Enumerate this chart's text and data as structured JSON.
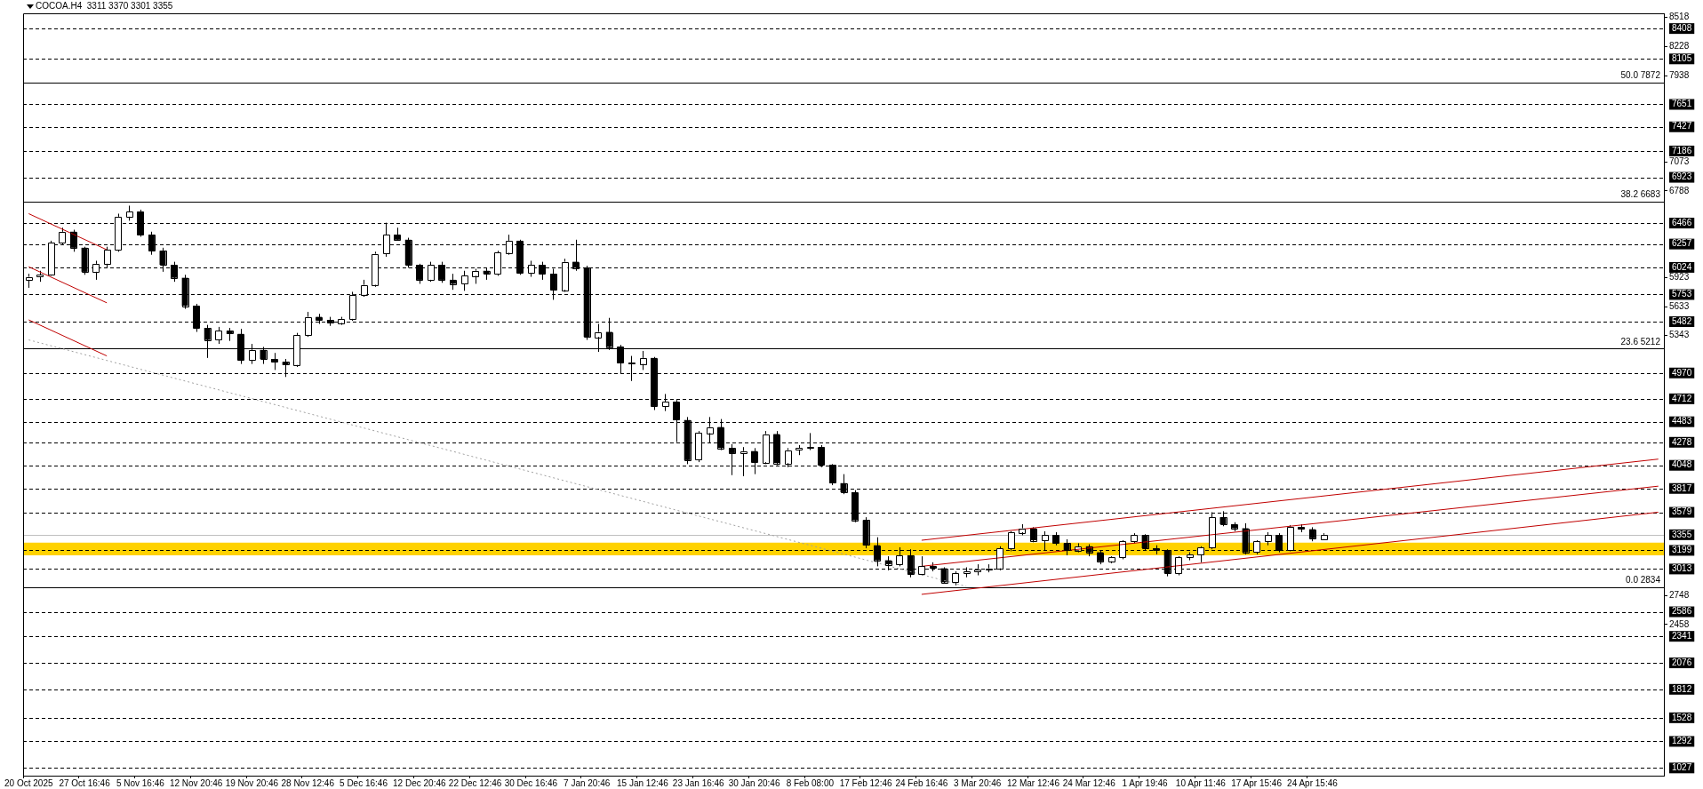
{
  "chart_data": {
    "type": "candlestick",
    "title": "COCOA.H4  3311 3370 3301 3355",
    "colors": [
      "#ffffff",
      "#ffffff",
      "#ffffff",
      "#ffffff",
      "#000000",
      "#000000",
      "#ffffff",
      "#ffffff",
      "#ffffff",
      "#ffffff",
      "#000000",
      "#000000",
      "#000000",
      "#000000",
      "#000000",
      "#000000",
      "#000000",
      "#ffffff",
      "#000000",
      "#000000",
      "#ffffff",
      "#000000",
      "#000000",
      "#000000",
      "#ffffff",
      "#ffffff",
      "#000000",
      "#000000",
      "#ffffff",
      "#ffffff",
      "#ffffff",
      "#ffffff",
      "#ffffff",
      "#000000",
      "#000000",
      "#000000",
      "#ffffff",
      "#000000",
      "#000000",
      "#ffffff",
      "#ffffff",
      "#000000",
      "#ffffff",
      "#ffffff",
      "#000000",
      "#ffffff",
      "#000000",
      "#000000",
      "#ffffff",
      "#000000",
      "#000000",
      "#ffffff",
      "#000000",
      "#000000",
      "#000000",
      "#ffffff",
      "#000000",
      "#ffffff",
      "#000000",
      "#000000",
      "#ffffff",
      "#ffffff",
      "#000000",
      "#000000",
      "#ffffff",
      "#000000",
      "#ffffff",
      "#000000",
      "#ffffff",
      "#ffffff",
      "#ffffff",
      "#000000",
      "#000000",
      "#000000",
      "#000000",
      "#000000",
      "#000000",
      "#000000",
      "#ffffff",
      "#000000",
      "#ffffff",
      "#000000",
      "#000000",
      "#ffffff",
      "#ffffff",
      "#ffffff",
      "#ffffff",
      "#ffffff",
      "#ffffff",
      "#ffffff",
      "#000000",
      "#ffffff",
      "#000000",
      "#000000",
      "#ffffff",
      "#000000",
      "#000000",
      "#ffffff",
      "#ffffff",
      "#ffffff",
      "#000000",
      "#000000",
      "#000000",
      "#ffffff",
      "#ffffff",
      "#ffffff",
      "#ffffff",
      "#000000",
      "#000000",
      "#000000",
      "#ffffff",
      "#ffffff",
      "#000000",
      "#ffffff",
      "#000000",
      "#000000",
      "#ffffff",
      null,
      null,
      null,
      null,
      null,
      null,
      null,
      null,
      null,
      null,
      null,
      null,
      null,
      null,
      null,
      null,
      null,
      null,
      null,
      null,
      null,
      null,
      null,
      null,
      null,
      null,
      null,
      null,
      null,
      null
    ],
    "categories": [
      "20 Oct 2025",
      null,
      null,
      null,
      null,
      "27 Oct 16:46",
      null,
      null,
      null,
      null,
      "5 Nov 16:46",
      null,
      null,
      null,
      null,
      "12 Nov 20:46",
      null,
      null,
      null,
      null,
      "19 Nov 20:46",
      null,
      null,
      null,
      null,
      "28 Nov 12:46",
      null,
      null,
      null,
      null,
      "5 Dec 16:46",
      null,
      null,
      null,
      null,
      "12 Dec 20:46",
      null,
      null,
      null,
      null,
      "22 Dec 12:46",
      null,
      null,
      null,
      null,
      "30 Dec 16:46",
      null,
      null,
      null,
      null,
      "7 Jan 20:46",
      null,
      null,
      null,
      null,
      "15 Jan 12:46",
      null,
      null,
      null,
      null,
      "23 Jan 16:46",
      null,
      null,
      null,
      null,
      "30 Jan 20:46",
      null,
      null,
      null,
      null,
      "8 Feb 08:00",
      null,
      null,
      null,
      null,
      "17 Feb 12:46",
      null,
      null,
      null,
      null,
      "24 Feb 16:46",
      null,
      null,
      null,
      null,
      "3 Mar 20:46",
      null,
      null,
      null,
      null,
      "12 Mar 12:46",
      null,
      null,
      null,
      null,
      "24 Mar 12:46",
      null,
      null,
      null,
      null,
      "1 Apr 19:46",
      null,
      null,
      null,
      null,
      "10 Apr 11:46",
      null,
      null,
      null,
      null,
      "17 Apr 15:46",
      null,
      null,
      null,
      null,
      "24 Apr 15:46",
      null,
      null,
      null,
      null,
      null,
      null,
      null,
      null,
      null,
      null,
      null,
      null,
      null,
      null,
      null,
      null,
      null,
      null,
      null,
      null,
      null,
      null,
      null,
      null,
      null,
      null,
      null,
      null,
      null,
      null,
      null
    ],
    "ohlc": [
      [
        5900,
        5960,
        5820,
        5930
      ],
      [
        5930,
        5990,
        5880,
        5950
      ],
      [
        5950,
        6290,
        5940,
        6270
      ],
      [
        6270,
        6420,
        6250,
        6380
      ],
      [
        6380,
        6400,
        6180,
        6220
      ],
      [
        6220,
        6230,
        5950,
        5980
      ],
      [
        5980,
        6090,
        5900,
        6060
      ],
      [
        6060,
        6230,
        6020,
        6200
      ],
      [
        6200,
        6560,
        6180,
        6530
      ],
      [
        6530,
        6640,
        6490,
        6580
      ],
      [
        6580,
        6600,
        6330,
        6350
      ],
      [
        6350,
        6380,
        6150,
        6190
      ],
      [
        6190,
        6220,
        5980,
        6050
      ],
      [
        6050,
        6080,
        5880,
        5920
      ],
      [
        5920,
        5950,
        5610,
        5640
      ],
      [
        5640,
        5660,
        5380,
        5420
      ],
      [
        5420,
        5450,
        5120,
        5300
      ],
      [
        5300,
        5430,
        5260,
        5390
      ],
      [
        5390,
        5420,
        5290,
        5360
      ],
      [
        5360,
        5410,
        5060,
        5100
      ],
      [
        5100,
        5260,
        5060,
        5200
      ],
      [
        5200,
        5230,
        5060,
        5110
      ],
      [
        5110,
        5170,
        5000,
        5080
      ],
      [
        5080,
        5110,
        4930,
        5050
      ],
      [
        5050,
        5370,
        5030,
        5350
      ],
      [
        5350,
        5580,
        5330,
        5530
      ],
      [
        5530,
        5560,
        5460,
        5500
      ],
      [
        5500,
        5530,
        5440,
        5470
      ],
      [
        5470,
        5530,
        5450,
        5510
      ],
      [
        5510,
        5780,
        5490,
        5750
      ],
      [
        5750,
        5900,
        5730,
        5850
      ],
      [
        5850,
        6180,
        5830,
        6160
      ],
      [
        6160,
        6470,
        6130,
        6350
      ],
      [
        6350,
        6420,
        6290,
        6300
      ],
      [
        6300,
        6320,
        6020,
        6050
      ],
      [
        6050,
        6060,
        5860,
        5900
      ],
      [
        5900,
        6080,
        5880,
        6050
      ],
      [
        6050,
        6080,
        5870,
        5900
      ],
      [
        5900,
        5960,
        5800,
        5860
      ],
      [
        5860,
        5990,
        5790,
        5940
      ],
      [
        5940,
        6010,
        5860,
        5990
      ],
      [
        5990,
        6020,
        5900,
        5960
      ],
      [
        5960,
        6190,
        5940,
        6170
      ],
      [
        6170,
        6350,
        6150,
        6290
      ],
      [
        6290,
        6300,
        5950,
        5970
      ],
      [
        5970,
        6090,
        5930,
        6050
      ],
      [
        6050,
        6080,
        5900,
        5960
      ],
      [
        5960,
        6010,
        5700,
        5800
      ],
      [
        5800,
        6110,
        5780,
        6080
      ],
      [
        6080,
        6300,
        5990,
        6020
      ],
      [
        6020,
        6040,
        5300,
        5330
      ],
      [
        5330,
        5460,
        5180,
        5380
      ],
      [
        5380,
        5520,
        5200,
        5230
      ],
      [
        5230,
        5250,
        4960,
        5070
      ],
      [
        5070,
        5140,
        4890,
        5060
      ],
      [
        5060,
        5190,
        5000,
        5120
      ],
      [
        5120,
        5130,
        4600,
        4640
      ],
      [
        4640,
        4760,
        4590,
        4680
      ],
      [
        4680,
        4700,
        4280,
        4500
      ],
      [
        4500,
        4530,
        4060,
        4100
      ],
      [
        4100,
        4390,
        4080,
        4370
      ],
      [
        4370,
        4530,
        4270,
        4430
      ],
      [
        4430,
        4510,
        4200,
        4220
      ],
      [
        4220,
        4260,
        3950,
        4170
      ],
      [
        4170,
        4230,
        3940,
        4190
      ],
      [
        4190,
        4220,
        3960,
        4080
      ],
      [
        4080,
        4390,
        4060,
        4360
      ],
      [
        4360,
        4390,
        4050,
        4070
      ],
      [
        4070,
        4220,
        4030,
        4200
      ],
      [
        4200,
        4250,
        4150,
        4220
      ],
      [
        4220,
        4370,
        4200,
        4230
      ],
      [
        4230,
        4250,
        4030,
        4050
      ],
      [
        4050,
        4060,
        3850,
        3870
      ],
      [
        3870,
        3960,
        3760,
        3780
      ],
      [
        3780,
        3800,
        3480,
        3500
      ],
      [
        3500,
        3530,
        3220,
        3250
      ],
      [
        3250,
        3330,
        3040,
        3100
      ],
      [
        3100,
        3140,
        3000,
        3060
      ],
      [
        3060,
        3230,
        3040,
        3150
      ],
      [
        3150,
        3210,
        2930,
        2960
      ],
      [
        2960,
        3140,
        2950,
        3040
      ],
      [
        3040,
        3080,
        2990,
        3020
      ],
      [
        3020,
        3030,
        2870,
        2880
      ],
      [
        2880,
        2990,
        2850,
        2970
      ],
      [
        2970,
        3030,
        2930,
        2990
      ],
      [
        2990,
        3060,
        2950,
        3010
      ],
      [
        3010,
        3060,
        2980,
        3020
      ],
      [
        3020,
        3240,
        3000,
        3220
      ],
      [
        3220,
        3390,
        3190,
        3380
      ],
      [
        3380,
        3460,
        3350,
        3420
      ],
      [
        3420,
        3430,
        3280,
        3300
      ],
      [
        3300,
        3390,
        3200,
        3350
      ],
      [
        3350,
        3380,
        3250,
        3270
      ],
      [
        3270,
        3310,
        3150,
        3200
      ],
      [
        3200,
        3270,
        3180,
        3240
      ],
      [
        3240,
        3260,
        3140,
        3180
      ],
      [
        3180,
        3200,
        3060,
        3090
      ],
      [
        3090,
        3140,
        3070,
        3130
      ],
      [
        3130,
        3300,
        3110,
        3290
      ],
      [
        3290,
        3370,
        3270,
        3350
      ],
      [
        3350,
        3360,
        3200,
        3220
      ],
      [
        3220,
        3250,
        3160,
        3200
      ],
      [
        3200,
        3210,
        2940,
        2970
      ],
      [
        2970,
        3140,
        2950,
        3130
      ],
      [
        3130,
        3180,
        3100,
        3160
      ],
      [
        3160,
        3240,
        3080,
        3230
      ],
      [
        3230,
        3580,
        3210,
        3530
      ],
      [
        3530,
        3590,
        3440,
        3460
      ],
      [
        3460,
        3480,
        3390,
        3420
      ],
      [
        3420,
        3470,
        3160,
        3180
      ],
      [
        3180,
        3300,
        3160,
        3290
      ],
      [
        3290,
        3380,
        3250,
        3350
      ],
      [
        3350,
        3370,
        3180,
        3200
      ],
      [
        3200,
        3450,
        3190,
        3430
      ],
      [
        3430,
        3460,
        3380,
        3410
      ],
      [
        3410,
        3430,
        3290,
        3320
      ],
      [
        3311,
        3370,
        3301,
        3355
      ],
      null,
      null,
      null,
      null,
      null,
      null,
      null,
      null,
      null,
      null,
      null,
      null,
      null,
      null,
      null,
      null,
      null,
      null,
      null,
      null,
      null,
      null,
      null,
      null,
      null,
      null,
      null,
      null,
      null,
      null
    ],
    "series": [
      {
        "type": "line",
        "color": "#c00000",
        "line_style": "solid",
        "values": [
          6560,
          null,
          null,
          null,
          null,
          null,
          null,
          6200,
          null,
          null,
          null,
          null,
          null,
          null,
          null,
          null,
          null,
          null,
          null,
          null,
          null,
          null,
          null,
          null,
          null,
          null,
          null,
          null,
          null,
          null,
          null,
          null,
          null,
          null,
          null,
          null,
          null,
          null,
          null,
          null,
          null,
          null,
          null,
          null,
          null,
          null,
          null,
          null,
          null,
          null,
          null,
          null,
          null,
          null,
          null,
          null,
          null,
          null,
          null,
          null,
          null,
          null,
          null,
          null,
          null,
          null,
          null,
          null,
          null,
          null,
          null,
          null,
          null,
          null,
          null,
          null,
          null,
          null,
          null,
          null,
          null,
          null,
          null,
          null,
          null,
          null,
          null,
          null,
          null,
          null,
          null,
          null,
          null,
          null,
          null,
          null,
          null,
          null,
          null,
          null,
          null,
          null,
          null,
          null,
          null,
          null,
          null,
          null,
          null,
          null,
          null,
          null,
          null,
          null,
          null,
          null,
          null,
          null,
          null,
          null,
          null,
          null,
          null,
          null,
          null,
          null,
          null,
          null,
          null,
          null,
          null,
          null,
          null,
          null,
          null,
          null,
          null,
          null,
          null,
          null,
          null,
          null,
          null,
          null,
          null,
          null,
          null
        ]
      },
      {
        "type": "line",
        "color": "#c00000",
        "line_style": "solid",
        "values": [
          6030,
          null,
          null,
          null,
          null,
          null,
          null,
          5670,
          null,
          null,
          null,
          null,
          null,
          null,
          null,
          null,
          null,
          null,
          null,
          null,
          null,
          null,
          null,
          null,
          null,
          null,
          null,
          null,
          null,
          null,
          null,
          null,
          null,
          null,
          null,
          null,
          null,
          null,
          null,
          null,
          null,
          null,
          null,
          null,
          null,
          null,
          null,
          null,
          null,
          null,
          null,
          null,
          null,
          null,
          null,
          null,
          null,
          null,
          null,
          null,
          null,
          null,
          null,
          null,
          null,
          null,
          null,
          null,
          null,
          null,
          null,
          null,
          null,
          null,
          null,
          null,
          null,
          null,
          null,
          null,
          null,
          null,
          null,
          null,
          null,
          null,
          null,
          null,
          null,
          null,
          null,
          null,
          null,
          null,
          null,
          null,
          null,
          null,
          null,
          null,
          null,
          null,
          null,
          null,
          null,
          null,
          null,
          null,
          null,
          null,
          null,
          null,
          null,
          null,
          null,
          null,
          null,
          null,
          null,
          null,
          null,
          null,
          null,
          null,
          null,
          null,
          null,
          null,
          null,
          null,
          null,
          null,
          null,
          null,
          null,
          null,
          null,
          null,
          null,
          null,
          null,
          null,
          null,
          null,
          null,
          null,
          null
        ]
      },
      {
        "type": "line",
        "color": "#c00000",
        "line_style": "solid",
        "values": [
          5500,
          null,
          null,
          null,
          null,
          null,
          null,
          5140,
          null,
          null,
          null,
          null,
          null,
          null,
          null,
          null,
          null,
          null,
          null,
          null,
          null,
          null,
          null,
          null,
          null,
          null,
          null,
          null,
          null,
          null,
          null,
          null,
          null,
          null,
          null,
          null,
          null,
          null,
          null,
          null,
          null,
          null,
          null,
          null,
          null,
          null,
          null,
          null,
          null,
          null,
          null,
          null,
          null,
          null,
          null,
          null,
          null,
          null,
          null,
          null,
          null,
          null,
          null,
          null,
          null,
          null,
          null,
          null,
          null,
          null,
          null,
          null,
          null,
          null,
          null,
          null,
          null,
          null,
          null,
          null,
          null,
          null,
          null,
          null,
          null,
          null,
          null,
          null,
          null,
          null,
          null,
          null,
          null,
          null,
          null,
          null,
          null,
          null,
          null,
          null,
          null,
          null,
          null,
          null,
          null,
          null,
          null,
          null,
          null,
          null,
          null,
          null,
          null,
          null,
          null,
          null,
          null,
          null,
          null,
          null,
          null,
          null,
          null,
          null,
          null,
          null,
          null,
          null,
          null,
          null,
          null,
          null,
          null,
          null,
          null,
          null,
          null,
          null,
          null,
          null,
          null,
          null,
          null,
          null,
          null,
          null,
          null
        ]
      },
      {
        "type": "line",
        "color": "#a0a0a0",
        "line_style": "dotted",
        "values": [
          5300,
          null,
          null,
          null,
          null,
          null,
          null,
          null,
          null,
          null,
          null,
          null,
          null,
          null,
          null,
          null,
          null,
          null,
          null,
          null,
          null,
          null,
          null,
          null,
          null,
          null,
          null,
          null,
          null,
          null,
          null,
          null,
          null,
          null,
          null,
          null,
          null,
          null,
          null,
          null,
          null,
          null,
          null,
          null,
          null,
          null,
          null,
          null,
          null,
          null,
          null,
          null,
          null,
          null,
          null,
          null,
          null,
          null,
          null,
          null,
          null,
          null,
          null,
          null,
          null,
          null,
          null,
          null,
          null,
          null,
          null,
          null,
          null,
          null,
          null,
          null,
          null,
          null,
          null,
          null,
          null,
          null,
          null,
          null,
          2840,
          null,
          null,
          null,
          null,
          null,
          null,
          null,
          null,
          null,
          null,
          null,
          null,
          null,
          null,
          null,
          null,
          null,
          null,
          null,
          null,
          null,
          null,
          null,
          null,
          null,
          null,
          null,
          null,
          null,
          null,
          null,
          null,
          null,
          null,
          null,
          null,
          null,
          null,
          null,
          null,
          null,
          null,
          null,
          null,
          null,
          null,
          null,
          null,
          null,
          null,
          null,
          null,
          null,
          null,
          null,
          null,
          null,
          null,
          null,
          null,
          null,
          null
        ]
      },
      {
        "type": "line",
        "color": "#c00000",
        "line_style": "solid",
        "values": [
          null,
          null,
          null,
          null,
          null,
          null,
          null,
          null,
          null,
          null,
          null,
          null,
          null,
          null,
          null,
          null,
          null,
          null,
          null,
          null,
          null,
          null,
          null,
          null,
          null,
          null,
          null,
          null,
          null,
          null,
          null,
          null,
          null,
          null,
          null,
          null,
          null,
          null,
          null,
          null,
          null,
          null,
          null,
          null,
          null,
          null,
          null,
          null,
          null,
          null,
          null,
          null,
          null,
          null,
          null,
          null,
          null,
          null,
          null,
          null,
          null,
          null,
          null,
          null,
          null,
          null,
          null,
          null,
          null,
          null,
          null,
          null,
          null,
          null,
          null,
          null,
          null,
          null,
          null,
          null,
          3300,
          null,
          null,
          null,
          null,
          null,
          null,
          null,
          null,
          null,
          null,
          null,
          null,
          null,
          null,
          null,
          null,
          null,
          null,
          null,
          null,
          null,
          null,
          null,
          null,
          null,
          null,
          null,
          null,
          null,
          null,
          null,
          null,
          null,
          null,
          null,
          null,
          null,
          null,
          null,
          null,
          null,
          null,
          null,
          null,
          null,
          null,
          null,
          null,
          null,
          null,
          null,
          null,
          null,
          null,
          null,
          null,
          null,
          null,
          null,
          null,
          null,
          null,
          null,
          null,
          null,
          4110
        ]
      },
      {
        "type": "line",
        "color": "#c00000",
        "line_style": "solid",
        "values": [
          null,
          null,
          null,
          null,
          null,
          null,
          null,
          null,
          null,
          null,
          null,
          null,
          null,
          null,
          null,
          null,
          null,
          null,
          null,
          null,
          null,
          null,
          null,
          null,
          null,
          null,
          null,
          null,
          null,
          null,
          null,
          null,
          null,
          null,
          null,
          null,
          null,
          null,
          null,
          null,
          null,
          null,
          null,
          null,
          null,
          null,
          null,
          null,
          null,
          null,
          null,
          null,
          null,
          null,
          null,
          null,
          null,
          null,
          null,
          null,
          null,
          null,
          null,
          null,
          null,
          null,
          null,
          null,
          null,
          null,
          null,
          null,
          null,
          null,
          null,
          null,
          null,
          null,
          null,
          null,
          3040,
          null,
          null,
          null,
          null,
          null,
          null,
          null,
          null,
          null,
          null,
          null,
          null,
          null,
          null,
          null,
          null,
          null,
          null,
          null,
          null,
          null,
          null,
          null,
          null,
          null,
          null,
          null,
          null,
          null,
          null,
          null,
          null,
          null,
          null,
          null,
          null,
          null,
          null,
          null,
          null,
          null,
          null,
          null,
          null,
          null,
          null,
          null,
          null,
          null,
          null,
          null,
          null,
          null,
          null,
          null,
          null,
          null,
          null,
          null,
          null,
          null,
          null,
          null,
          null,
          null,
          3840
        ]
      },
      {
        "type": "line",
        "color": "#c00000",
        "line_style": "solid",
        "values": [
          null,
          null,
          null,
          null,
          null,
          null,
          null,
          null,
          null,
          null,
          null,
          null,
          null,
          null,
          null,
          null,
          null,
          null,
          null,
          null,
          null,
          null,
          null,
          null,
          null,
          null,
          null,
          null,
          null,
          null,
          null,
          null,
          null,
          null,
          null,
          null,
          null,
          null,
          null,
          null,
          null,
          null,
          null,
          null,
          null,
          null,
          null,
          null,
          null,
          null,
          null,
          null,
          null,
          null,
          null,
          null,
          null,
          null,
          null,
          null,
          null,
          null,
          null,
          null,
          null,
          null,
          null,
          null,
          null,
          null,
          null,
          null,
          null,
          null,
          null,
          null,
          null,
          null,
          null,
          null,
          2760,
          null,
          null,
          null,
          null,
          null,
          null,
          null,
          null,
          null,
          null,
          null,
          null,
          null,
          null,
          null,
          null,
          null,
          null,
          null,
          null,
          null,
          null,
          null,
          null,
          null,
          null,
          null,
          null,
          null,
          null,
          null,
          null,
          null,
          null,
          null,
          null,
          null,
          null,
          null,
          null,
          null,
          null,
          null,
          null,
          null,
          null,
          null,
          null,
          null,
          null,
          null,
          null,
          null,
          null,
          null,
          null,
          null,
          null,
          null,
          null,
          null,
          null,
          null,
          null,
          null,
          3580
        ]
      }
    ],
    "ylim": [
      950,
      8560
    ],
    "yticks": [
      8518,
      8228,
      7938,
      7073,
      6788,
      5923,
      5633,
      5343,
      2748,
      2458
    ],
    "bands": [
      {
        "axis": "y",
        "from": 3150,
        "to": 3276,
        "color": "#ffd200"
      }
    ],
    "ref_lines": [
      {
        "axis": "y",
        "value": 8408,
        "label": "8408",
        "color": "#000000",
        "line_style": "dashed"
      },
      {
        "axis": "y",
        "value": 8105,
        "label": "8105",
        "color": "#000000",
        "line_style": "dashed"
      },
      {
        "axis": "y",
        "value": 7872,
        "label": "50.0 7872",
        "color": "#000000",
        "line_style": "solid"
      },
      {
        "axis": "y",
        "value": 7651,
        "label": "7651",
        "color": "#000000",
        "line_style": "dashed"
      },
      {
        "axis": "y",
        "value": 7427,
        "label": "7427",
        "color": "#000000",
        "line_style": "dashed"
      },
      {
        "axis": "y",
        "value": 7186,
        "label": "7186",
        "color": "#000000",
        "line_style": "dashed"
      },
      {
        "axis": "y",
        "value": 6923,
        "label": "6923",
        "color": "#000000",
        "line_style": "dashed"
      },
      {
        "axis": "y",
        "value": 6683,
        "label": "38.2 6683",
        "color": "#000000",
        "line_style": "solid"
      },
      {
        "axis": "y",
        "value": 6466,
        "label": "6466",
        "color": "#000000",
        "line_style": "dashed"
      },
      {
        "axis": "y",
        "value": 6257,
        "label": "6257",
        "color": "#000000",
        "line_style": "dashed"
      },
      {
        "axis": "y",
        "value": 6024,
        "label": "6024",
        "color": "#000000",
        "line_style": "dashed"
      },
      {
        "axis": "y",
        "value": 5753,
        "label": "5753",
        "color": "#000000",
        "line_style": "dashed"
      },
      {
        "axis": "y",
        "value": 5482,
        "label": "5482",
        "color": "#000000",
        "line_style": "dashed"
      },
      {
        "axis": "y",
        "value": 5212,
        "label": "23.6 5212",
        "color": "#000000",
        "line_style": "solid"
      },
      {
        "axis": "y",
        "value": 4970,
        "label": "4970",
        "color": "#000000",
        "line_style": "dashed"
      },
      {
        "axis": "y",
        "value": 4712,
        "label": "4712",
        "color": "#000000",
        "line_style": "dashed"
      },
      {
        "axis": "y",
        "value": 4483,
        "label": "4483",
        "color": "#000000",
        "line_style": "dashed"
      },
      {
        "axis": "y",
        "value": 4278,
        "label": "4278",
        "color": "#000000",
        "line_style": "dashed"
      },
      {
        "axis": "y",
        "value": 4048,
        "label": "4048",
        "color": "#000000",
        "line_style": "dashed"
      },
      {
        "axis": "y",
        "value": 3817,
        "label": "3817",
        "color": "#000000",
        "line_style": "dashed"
      },
      {
        "axis": "y",
        "value": 3579,
        "label": "3579",
        "color": "#000000",
        "line_style": "dashed"
      },
      {
        "axis": "y",
        "value": 3355,
        "label": "3355",
        "color": "#c0c0c0",
        "line_style": "solid"
      },
      {
        "axis": "y",
        "value": 3199,
        "label": "3199",
        "color": "#000000",
        "line_style": "dashed"
      },
      {
        "axis": "y",
        "value": 3013,
        "label": "3013",
        "color": "#000000",
        "line_style": "dashed"
      },
      {
        "axis": "y",
        "value": 2834,
        "label": "0.0 2834",
        "color": "#000000",
        "line_style": "solid"
      },
      {
        "axis": "y",
        "value": 2586,
        "label": "2586",
        "color": "#000000",
        "line_style": "dashed"
      },
      {
        "axis": "y",
        "value": 2341,
        "label": "2341",
        "color": "#000000",
        "line_style": "dashed"
      },
      {
        "axis": "y",
        "value": 2076,
        "label": "2076",
        "color": "#000000",
        "line_style": "dashed"
      },
      {
        "axis": "y",
        "value": 1812,
        "label": "1812",
        "color": "#000000",
        "line_style": "dashed"
      },
      {
        "axis": "y",
        "value": 1528,
        "label": "1528",
        "color": "#000000",
        "line_style": "dashed"
      },
      {
        "axis": "y",
        "value": 1292,
        "label": "1292",
        "color": "#000000",
        "line_style": "dashed"
      },
      {
        "axis": "y",
        "value": 1027,
        "label": "1027",
        "color": "#000000",
        "line_style": "dashed"
      }
    ],
    "grid": false,
    "legend": false
  }
}
